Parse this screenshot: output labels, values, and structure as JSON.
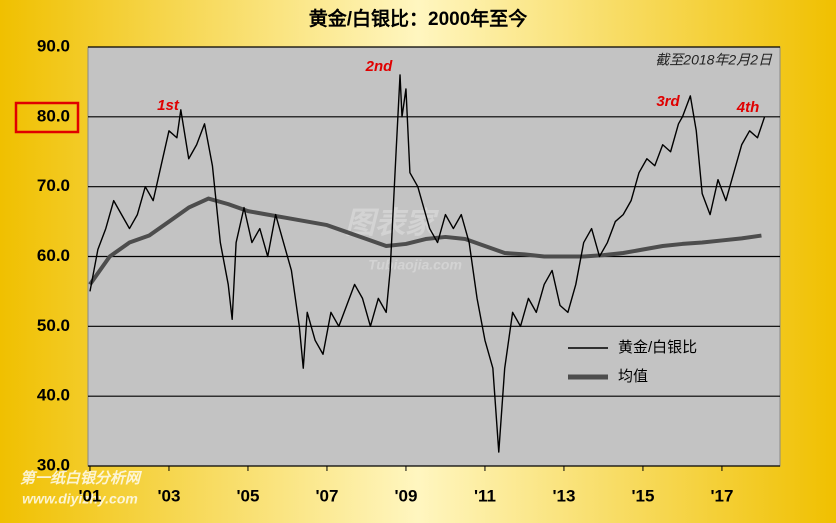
{
  "chart_data": {
    "type": "line",
    "title": "黄金/白银比：2000年至今",
    "subtitle": "截至2018年2月2日",
    "annotations": [
      "1st",
      "2nd",
      "3rd",
      "4th"
    ],
    "watermarks": [
      "图表家",
      "Tubiaojia.com",
      "第一纸白银分析网",
      "www.diyizhy.com"
    ],
    "xlim": [
      2000.95,
      2018.47
    ],
    "xticks": [
      {
        "value": 2001,
        "label": "'01"
      },
      {
        "value": 2003,
        "label": "'03"
      },
      {
        "value": 2005,
        "label": "'05"
      },
      {
        "value": 2007,
        "label": "'07"
      },
      {
        "value": 2009,
        "label": "'09"
      },
      {
        "value": 2011,
        "label": "'11"
      },
      {
        "value": 2013,
        "label": "'13"
      },
      {
        "value": 2015,
        "label": "'15"
      },
      {
        "value": 2017,
        "label": "'17"
      }
    ],
    "ylim": [
      30,
      90
    ],
    "yticks": [
      {
        "value": 30,
        "label": "30.0"
      },
      {
        "value": 40,
        "label": "40.0"
      },
      {
        "value": 50,
        "label": "50.0"
      },
      {
        "value": 60,
        "label": "60.0"
      },
      {
        "value": 70,
        "label": "70.0"
      },
      {
        "value": 80,
        "label": "80.0"
      },
      {
        "value": 90,
        "label": "90.0"
      }
    ],
    "grid": true,
    "legend": "lower-right",
    "series": [
      {
        "name": "黄金/白银比",
        "color": "#000000",
        "x": [
          2001.0,
          2001.1,
          2001.2,
          2001.4,
          2001.6,
          2001.8,
          2002.0,
          2002.2,
          2002.4,
          2002.6,
          2002.8,
          2003.0,
          2003.2,
          2003.3,
          2003.5,
          2003.7,
          2003.9,
          2004.1,
          2004.3,
          2004.5,
          2004.6,
          2004.7,
          2004.9,
          2005.1,
          2005.3,
          2005.5,
          2005.7,
          2005.9,
          2006.1,
          2006.3,
          2006.4,
          2006.5,
          2006.7,
          2006.9,
          2007.1,
          2007.3,
          2007.5,
          2007.7,
          2007.9,
          2008.1,
          2008.3,
          2008.5,
          2008.6,
          2008.75,
          2008.85,
          2008.9,
          2009.0,
          2009.1,
          2009.3,
          2009.4,
          2009.6,
          2009.8,
          2010.0,
          2010.2,
          2010.4,
          2010.6,
          2010.8,
          2011.0,
          2011.2,
          2011.3,
          2011.35,
          2011.5,
          2011.7,
          2011.9,
          2012.1,
          2012.3,
          2012.5,
          2012.7,
          2012.9,
          2013.1,
          2013.3,
          2013.5,
          2013.7,
          2013.9,
          2014.1,
          2014.3,
          2014.5,
          2014.7,
          2014.9,
          2015.1,
          2015.3,
          2015.5,
          2015.7,
          2015.9,
          2016.0,
          2016.2,
          2016.35,
          2016.5,
          2016.7,
          2016.9,
          2017.1,
          2017.3,
          2017.5,
          2017.7,
          2017.9,
          2018.08
        ],
        "values": [
          55,
          58,
          61,
          64,
          68,
          66,
          64,
          66,
          70,
          68,
          73,
          78,
          77,
          81,
          74,
          76,
          79,
          73,
          62,
          56,
          51,
          62,
          67,
          62,
          64,
          60,
          66,
          62,
          58,
          50,
          44,
          52,
          48,
          46,
          52,
          50,
          53,
          56,
          54,
          50,
          54,
          52,
          58,
          75,
          86,
          80,
          84,
          72,
          70,
          68,
          64,
          62,
          66,
          64,
          66,
          62,
          54,
          48,
          44,
          36,
          32,
          44,
          52,
          50,
          54,
          52,
          56,
          58,
          53,
          52,
          56,
          62,
          64,
          60,
          62,
          65,
          66,
          68,
          72,
          74,
          73,
          76,
          75,
          79,
          80,
          83,
          78,
          69,
          66,
          71,
          68,
          72,
          76,
          78,
          77,
          80
        ]
      },
      {
        "name": "均值",
        "color": "#4d4d4d",
        "x": [
          2001.0,
          2001.5,
          2002.0,
          2002.5,
          2003.0,
          2003.5,
          2004.0,
          2004.5,
          2005.0,
          2005.5,
          2006.0,
          2006.5,
          2007.0,
          2007.5,
          2008.0,
          2008.5,
          2009.0,
          2009.5,
          2010.0,
          2010.5,
          2011.0,
          2011.5,
          2012.0,
          2012.5,
          2013.0,
          2013.5,
          2014.0,
          2014.5,
          2015.0,
          2015.5,
          2016.0,
          2016.5,
          2017.0,
          2017.5,
          2018.0
        ],
        "values": [
          56,
          60,
          62,
          63,
          65,
          67,
          68.3,
          67.5,
          66.5,
          66,
          65.5,
          65,
          64.5,
          63.5,
          62.5,
          61.5,
          61.8,
          62.5,
          62.8,
          62.5,
          61.5,
          60.5,
          60.3,
          60,
          60,
          60,
          60.2,
          60.5,
          61,
          61.5,
          61.8,
          62,
          62.3,
          62.6,
          63
        ]
      }
    ]
  }
}
